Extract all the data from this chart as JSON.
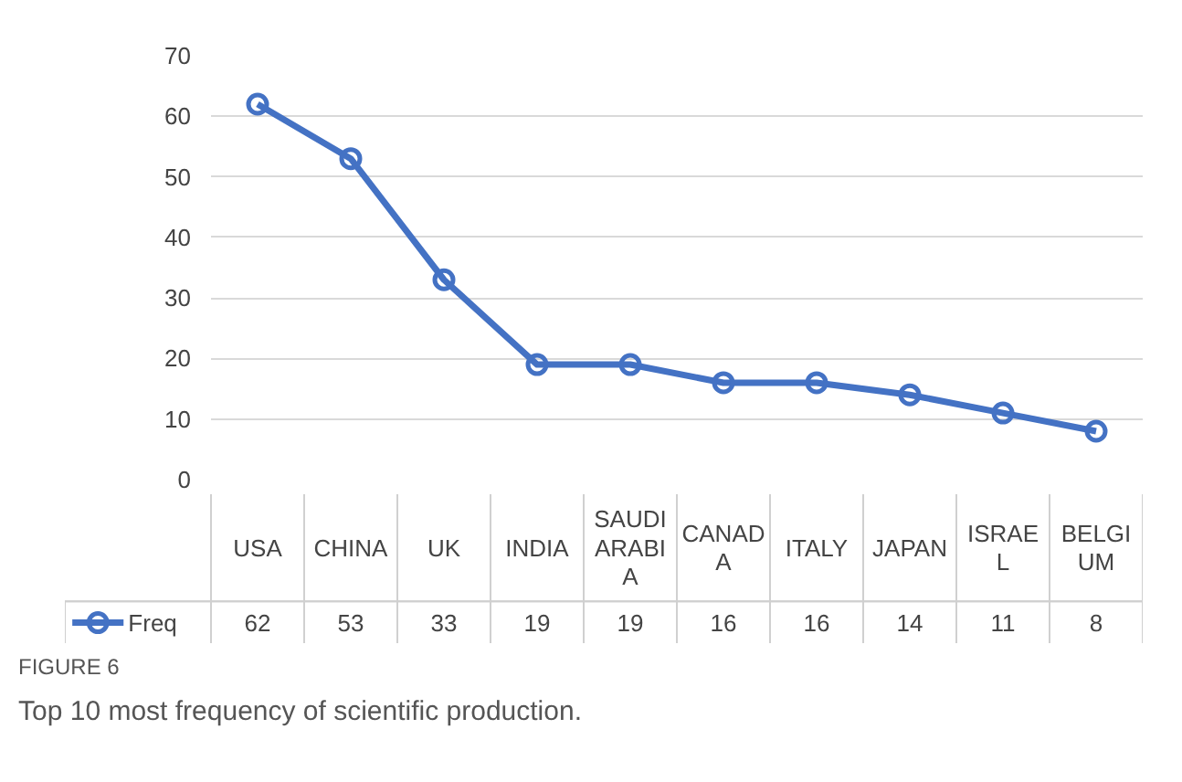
{
  "chart_data": {
    "type": "line",
    "categories": [
      "USA",
      "CHINA",
      "UK",
      "INDIA",
      "SAUDI ARABIA",
      "CANADA",
      "ITALY",
      "JAPAN",
      "ISRAEL",
      "BELGIUM"
    ],
    "series": [
      {
        "name": "Freq",
        "color": "#4472c4",
        "values": [
          62,
          53,
          33,
          19,
          19,
          16,
          16,
          14,
          11,
          8
        ]
      }
    ],
    "ylim": [
      0,
      70
    ],
    "yticks": [
      0,
      10,
      20,
      30,
      40,
      50,
      60,
      70
    ],
    "grid": "y",
    "marker": "circle",
    "line_style": "solid",
    "data_labels": true,
    "legend": "bottom",
    "annotations": [
      "FIGURE 6",
      "Top 10 most frequency of scientific production."
    ]
  }
}
